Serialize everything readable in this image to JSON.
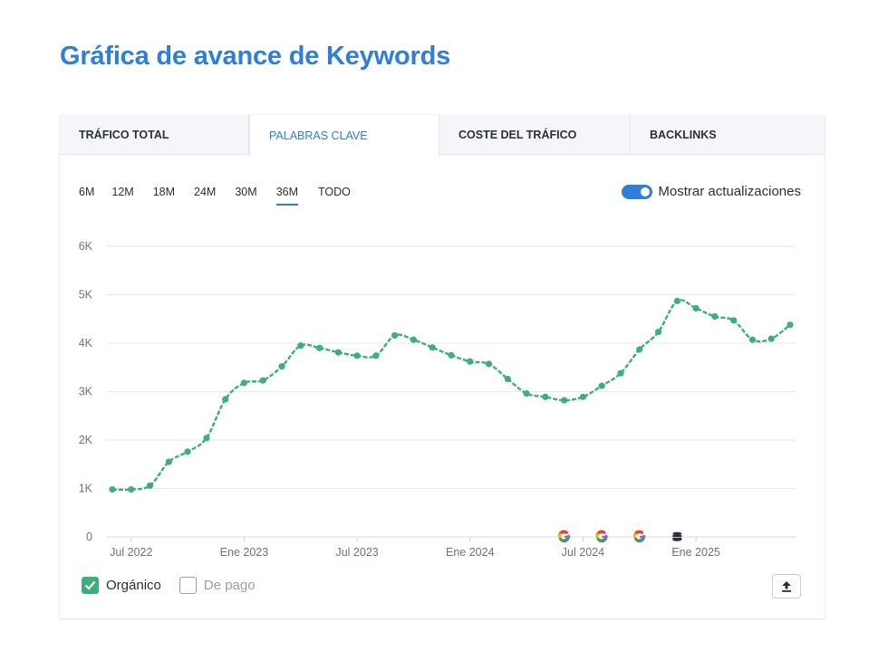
{
  "page": {
    "title": "Gráfica de avance de Keywords"
  },
  "tabs": [
    {
      "label": "TRÁFICO TOTAL",
      "active": false
    },
    {
      "label": "PALABRAS CLAVE",
      "active": true
    },
    {
      "label": "COSTE DEL TRÁFICO",
      "active": false
    },
    {
      "label": "BACKLINKS",
      "active": false
    }
  ],
  "ranges": [
    {
      "label": "6M",
      "active": false
    },
    {
      "label": "12M",
      "active": false
    },
    {
      "label": "18M",
      "active": false
    },
    {
      "label": "24M",
      "active": false
    },
    {
      "label": "30M",
      "active": false
    },
    {
      "label": "36M",
      "active": true
    },
    {
      "label": "TODO",
      "active": false
    }
  ],
  "toggle": {
    "label": "Mostrar actualizaciones",
    "on": true
  },
  "legend": {
    "organic": {
      "label": "Orgánico",
      "checked": true
    },
    "paid": {
      "label": "De pago",
      "checked": false
    }
  },
  "colors": {
    "accent": "#2f7fd6",
    "series": "#3daf7a",
    "grid": "#e6e9ee"
  },
  "icons": {
    "export": "upload-icon",
    "check": "check-icon",
    "google": "google-icon",
    "database": "database-icon"
  },
  "chart_data": {
    "type": "line",
    "title": "",
    "xlabel": "",
    "ylabel": "",
    "ylim": [
      0,
      6000
    ],
    "yticks": [
      {
        "value": 0,
        "label": "0"
      },
      {
        "value": 1000,
        "label": "1K"
      },
      {
        "value": 2000,
        "label": "2K"
      },
      {
        "value": 3000,
        "label": "3K"
      },
      {
        "value": 4000,
        "label": "4K"
      },
      {
        "value": 5000,
        "label": "5K"
      },
      {
        "value": 6000,
        "label": "6K"
      }
    ],
    "xlim": [
      0,
      36
    ],
    "xticks": [
      {
        "value": 1,
        "label": "Jul 2022"
      },
      {
        "value": 7,
        "label": "Ene 2023"
      },
      {
        "value": 13,
        "label": "Jul 2023"
      },
      {
        "value": 19,
        "label": "Ene 2024"
      },
      {
        "value": 25,
        "label": "Jul 2024"
      },
      {
        "value": 31,
        "label": "Ene 2025"
      }
    ],
    "grid": true,
    "series": [
      {
        "name": "Orgánico",
        "x": [
          0,
          1,
          2,
          3,
          4,
          5,
          6,
          7,
          8,
          9,
          10,
          11,
          12,
          13,
          14,
          15,
          16,
          17,
          18,
          19,
          20,
          21,
          22,
          23,
          24,
          25,
          26,
          27,
          28,
          29,
          30,
          31,
          32,
          33,
          34,
          35,
          36
        ],
        "values": [
          980,
          980,
          1060,
          1550,
          1760,
          2040,
          2840,
          3180,
          3230,
          3520,
          3950,
          3900,
          3810,
          3740,
          3740,
          4160,
          4070,
          3910,
          3750,
          3620,
          3570,
          3260,
          2960,
          2890,
          2820,
          2890,
          3120,
          3380,
          3870,
          4230,
          4870,
          4720,
          4550,
          4470,
          4070,
          4090,
          4380
        ]
      }
    ],
    "annotations": [
      {
        "x": 24,
        "icon": "google"
      },
      {
        "x": 26,
        "icon": "google"
      },
      {
        "x": 28,
        "icon": "google"
      },
      {
        "x": 30,
        "icon": "database"
      }
    ]
  }
}
